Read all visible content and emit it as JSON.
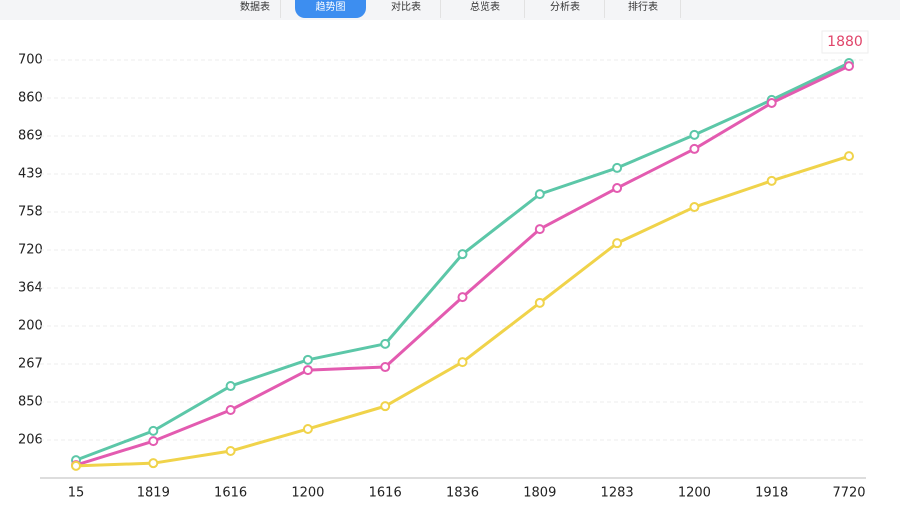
{
  "tabs": [
    "数据表",
    "趋势图",
    "对比表",
    "总览表",
    "分析表",
    "排行表"
  ],
  "chart_data": {
    "type": "line",
    "annotation": "1880",
    "categories": [
      "15",
      "1819",
      "1616",
      "1200",
      "1616",
      "1836",
      "1809",
      "1283",
      "1200",
      "1918",
      "7720"
    ],
    "series": [
      {
        "color": "#5cc7a8",
        "values": [
          0.47,
          1.24,
          2.42,
          3.11,
          3.53,
          5.89,
          7.47,
          8.16,
          9.03,
          9.95,
          10.92
        ]
      },
      {
        "color": "#e35bb0",
        "values": [
          0.34,
          0.97,
          1.79,
          2.84,
          2.92,
          4.76,
          6.55,
          7.63,
          8.66,
          9.87,
          10.84
        ]
      },
      {
        "color": "#f0d34a",
        "values": [
          0.32,
          0.39,
          0.71,
          1.29,
          1.89,
          3.05,
          4.61,
          6.18,
          7.13,
          7.82,
          8.47
        ]
      }
    ],
    "ylim": [
      0,
      11.5
    ],
    "yticks": [
      {
        "value": 1,
        "label": "206"
      },
      {
        "value": 2,
        "label": "850"
      },
      {
        "value": 3,
        "label": "267"
      },
      {
        "value": 4,
        "label": "200"
      },
      {
        "value": 5,
        "label": "364"
      },
      {
        "value": 6,
        "label": "720"
      },
      {
        "value": 7,
        "label": "758"
      },
      {
        "value": 8,
        "label": "439"
      },
      {
        "value": 9,
        "label": "869"
      },
      {
        "value": 10,
        "label": "860"
      },
      {
        "value": 11,
        "label": "700"
      }
    ],
    "grid": true
  }
}
